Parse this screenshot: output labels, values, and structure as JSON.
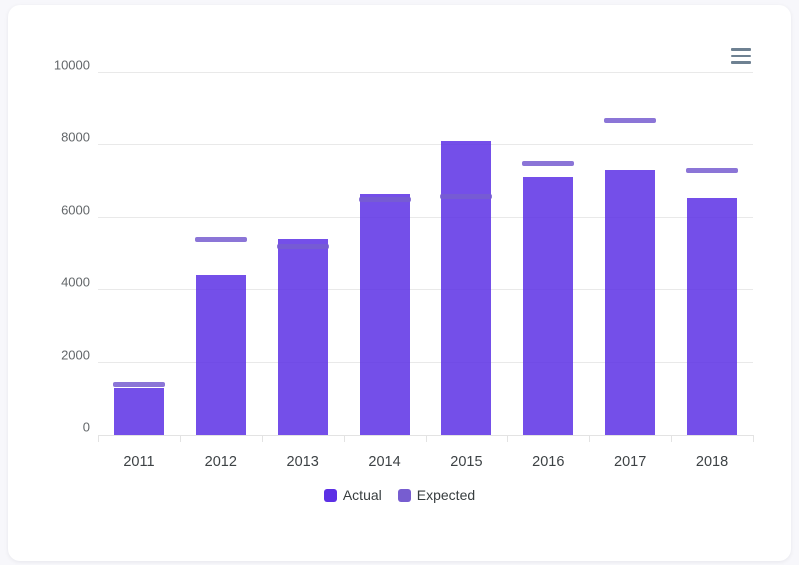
{
  "colors": {
    "page_background": "#f7f7fb",
    "card_background": "#ffffff",
    "actual": "#5C30E5",
    "actual_bar_fill_opacity": 0.85,
    "expected": "#775DD0",
    "gridline": "#e9e9e9",
    "axis_line": "#e3e3e3",
    "y_label_color": "#63676a",
    "x_label_color": "#3d4245",
    "legend_text_color": "#373d3f",
    "menu_icon_color": "#6E8192"
  },
  "toolbar": {
    "menu_icon": "hamburger-menu-icon"
  },
  "legend": {
    "position": "bottom",
    "items": [
      {
        "label": "Actual",
        "color": "#5C30E5",
        "shape": "rounded-square"
      },
      {
        "label": "Expected",
        "color": "#775DD0",
        "shape": "rounded-square"
      }
    ]
  },
  "chart_data": {
    "type": "bar",
    "title": "",
    "orientation": "vertical",
    "categories": [
      "2011",
      "2012",
      "2013",
      "2014",
      "2015",
      "2016",
      "2017",
      "2018"
    ],
    "series": [
      {
        "name": "Actual",
        "render_as": "column",
        "color": "#5C30E5",
        "values": [
          1292,
          4432,
          5423,
          6653,
          8133,
          7132,
          7332,
          6553
        ]
      },
      {
        "name": "Expected",
        "render_as": "goal-marker-dash",
        "color": "#775DD0",
        "values": [
          1400,
          5400,
          5200,
          6500,
          6600,
          7500,
          8700,
          7300
        ]
      }
    ],
    "xlabel": "",
    "ylabel": "",
    "ylim": [
      0,
      10000
    ],
    "yticks": [
      0,
      2000,
      4000,
      6000,
      8000,
      10000
    ],
    "ytick_labels": [
      "0",
      "2000",
      "4000",
      "6000",
      "8000",
      "10000"
    ],
    "grid": true,
    "legend_position": "bottom"
  }
}
